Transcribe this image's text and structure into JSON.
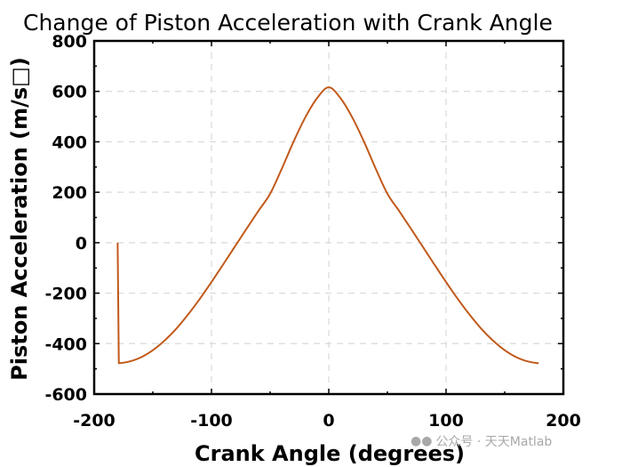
{
  "chart_data": {
    "type": "line",
    "title": "Change of Piston Acceleration with Crank Angle",
    "xlabel": "Crank Angle (degrees)",
    "ylabel": "Piston Acceleration (m/s□)",
    "xlim": [
      -200,
      200
    ],
    "ylim": [
      -600,
      800
    ],
    "x_ticks": [
      -200,
      -100,
      0,
      100,
      200
    ],
    "y_ticks": [
      -600,
      -400,
      -200,
      0,
      200,
      400,
      600,
      800
    ],
    "grid": true,
    "series": [
      {
        "color": "#c1591a",
        "x": [
          -180,
          -179,
          -170,
          -160,
          -150,
          -140,
          -130,
          -120,
          -110,
          -100,
          -90,
          -80,
          -70,
          -60,
          -50,
          -40,
          -30,
          -20,
          -10,
          0,
          10,
          20,
          30,
          40,
          50,
          60,
          70,
          80,
          90,
          100,
          110,
          120,
          130,
          140,
          150,
          160,
          170,
          179
        ],
        "y": [
          0,
          -478,
          -471,
          -454,
          -426,
          -388,
          -341,
          -285,
          -223,
          -156,
          -86,
          -15,
          56,
          126,
          194,
          294,
          401,
          497,
          573,
          616,
          573,
          497,
          401,
          294,
          194,
          126,
          56,
          -15,
          -86,
          -156,
          -223,
          -285,
          -341,
          -388,
          -426,
          -454,
          -471,
          -478
        ]
      }
    ]
  },
  "watermark": {
    "icon": "wechat-icon",
    "text": "公众号 · 天天Matlab"
  }
}
